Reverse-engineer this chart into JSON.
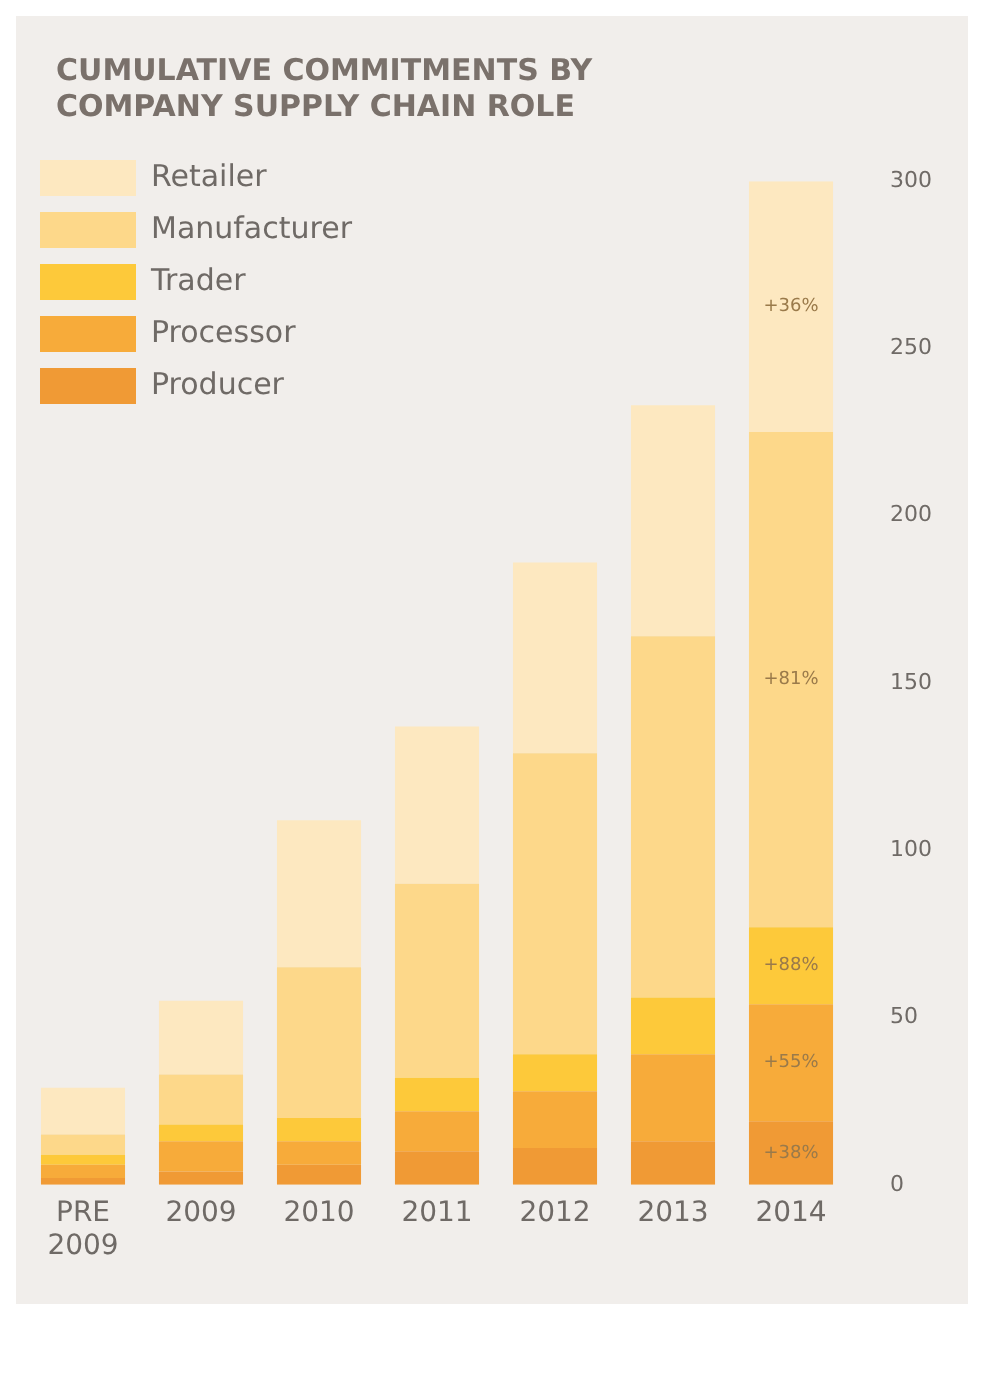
{
  "chart_data": {
    "type": "bar",
    "title": "CUMULATIVE COMMITMENTS BY COMPANY SUPPLY CHAIN ROLE",
    "categories": [
      "PRE 2009",
      "2009",
      "2010",
      "2011",
      "2012",
      "2013",
      "2014"
    ],
    "stacked": true,
    "series": [
      {
        "name": "Producer",
        "color": "#f09a35",
        "values": [
          2,
          4,
          6,
          10,
          11,
          13,
          19
        ]
      },
      {
        "name": "Processor",
        "color": "#f7ab3a",
        "values": [
          4,
          9,
          7,
          12,
          17,
          26,
          35
        ]
      },
      {
        "name": "Trader",
        "color": "#fdc93a",
        "values": [
          3,
          5,
          7,
          10,
          11,
          17,
          23
        ]
      },
      {
        "name": "Manufacturer",
        "color": "#fdd88a",
        "values": [
          6,
          15,
          45,
          58,
          90,
          108,
          148
        ]
      },
      {
        "name": "Retailer",
        "color": "#fde8c0",
        "values": [
          14,
          22,
          44,
          47,
          57,
          69,
          75
        ]
      }
    ],
    "ylim": [
      0,
      300
    ],
    "yticks": [
      0,
      50,
      100,
      150,
      200,
      250,
      300
    ],
    "grid": false,
    "legend": "top left",
    "annotations": [
      "+36%",
      "+81%",
      "+88%",
      "+55%",
      "+38%"
    ]
  }
}
